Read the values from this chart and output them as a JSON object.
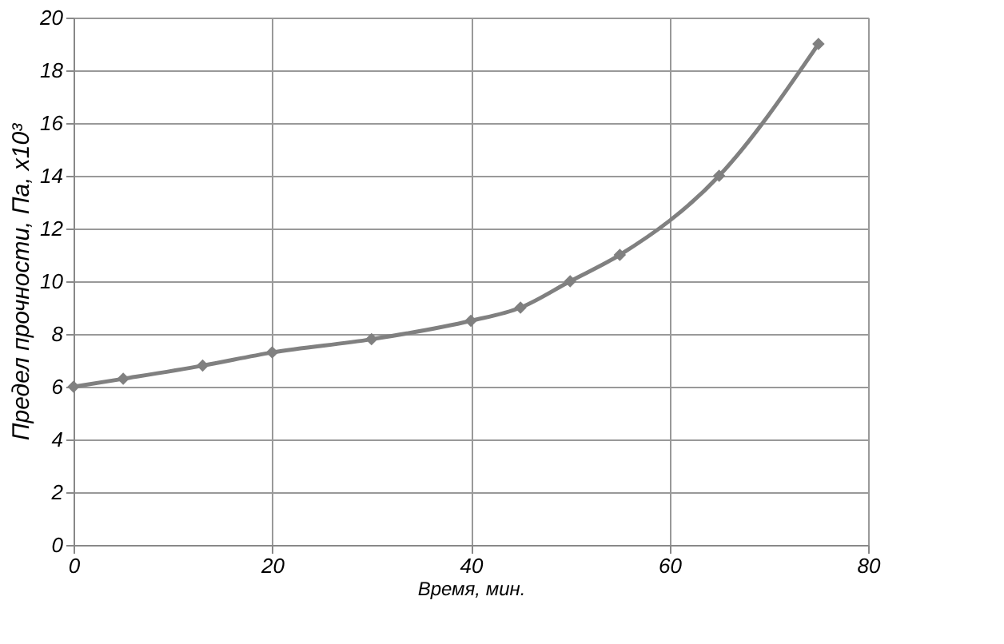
{
  "chart_data": {
    "type": "line",
    "xlabel": "Время, мин.",
    "ylabel": "Предел прочности, Па, x10³",
    "x": [
      0,
      5,
      13,
      20,
      30,
      40,
      45,
      50,
      55,
      65,
      75
    ],
    "series": [
      {
        "color": "#808080",
        "values": [
          6,
          6.3,
          6.8,
          7.3,
          7.8,
          8.5,
          9.0,
          10.0,
          11.0,
          14.0,
          19.0
        ]
      }
    ],
    "xlim": [
      0,
      80
    ],
    "xticks": [
      0,
      20,
      40,
      60,
      80
    ],
    "ylim": [
      0,
      20
    ],
    "yticks": [
      0,
      2,
      4,
      6,
      8,
      10,
      12,
      14,
      16,
      18,
      20
    ],
    "grid": true,
    "marker": "diamond",
    "line_style": "solid"
  }
}
